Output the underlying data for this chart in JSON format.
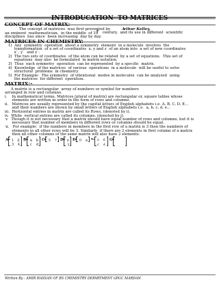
{
  "title": "INTRODUCATION  TO MATRICES",
  "bg_color": "#ffffff",
  "text_color": "#1a1a1a",
  "footer": "Written By : AMIR HASSAN OF BS CHEMISTRY DEPARTMENT GPGC MARDAN",
  "concept_heading": "CONCEPT OF MATRIX:",
  "concept_body": "               The concept of matrices was first prevented by Arthur Kelley,\nan eminent  mathematician,  in the middle  of 19th century,  and its use in different  scientific\ndisciplines  has since  been increasing  day by day.",
  "chem_heading": "MATRICES IN CHEMISTRY:",
  "chem_items": [
    "1)  Any  symmetry  operation  about a symmetry  element  in a molecule  involves  the\n     transformation  of a set of coordinates  x, y and z of an atom into  a set of new  coordinates\n     x`, y`  and z`.",
    "2)  The two sets of coordinates  of the atom can be related  by a set of equations.  This  set of\n     equations  may also  be formulated  in matrix notation.",
    "3)  Thus  each symmetry  operation  can be represented  by a specific  matrix.",
    "4)  Knowledge  of the matrices  of various  operations  in a molecule  will be useful to solve\n     structural  problems  in chemistry.",
    "5)  For Example:  The symmetry  of vibrational  modes  in molecules  can be analyzed  using\n     the matrices  for different  operation."
  ],
  "matrix_heading": "MATRIX:-",
  "matrix_def": "     A matrix is a rectangular  array of numbers or symbol for numbers\narranged in row and columns.",
  "matrix_items": [
    "i.   In mathematical terms, Matrices (plural of matrix) are rectangular or, square tables whose\n     elements are written in order in the form of rows and columns.",
    "ii.  Matrices are usually represented by the capital letters of English  alphabets i.e.  A, B, C, D, E...\n     and their numbers are shown by small letters of English  alphabets i.e.  a, b, c, d, e...",
    "iii. Horizontal entries in matrix are called its Rows, (denoted by i).",
    "iv.  While  vertical entries are called its columns, (denoted by j).",
    "v.   Though it is not necessary that a matrix should have equal number of rows and columns, but it is\n     necessary that number of members in different rows or columns should be equal.",
    "vi.  For example:  if the numbers in members in the first row of a matrix is 3 then the numbers of\n     elements in all other rows will be 3. Similarly  if there are 2 elements in first column of a matrix\n     then all other columns of the same matrix will also have 2 elements."
  ]
}
